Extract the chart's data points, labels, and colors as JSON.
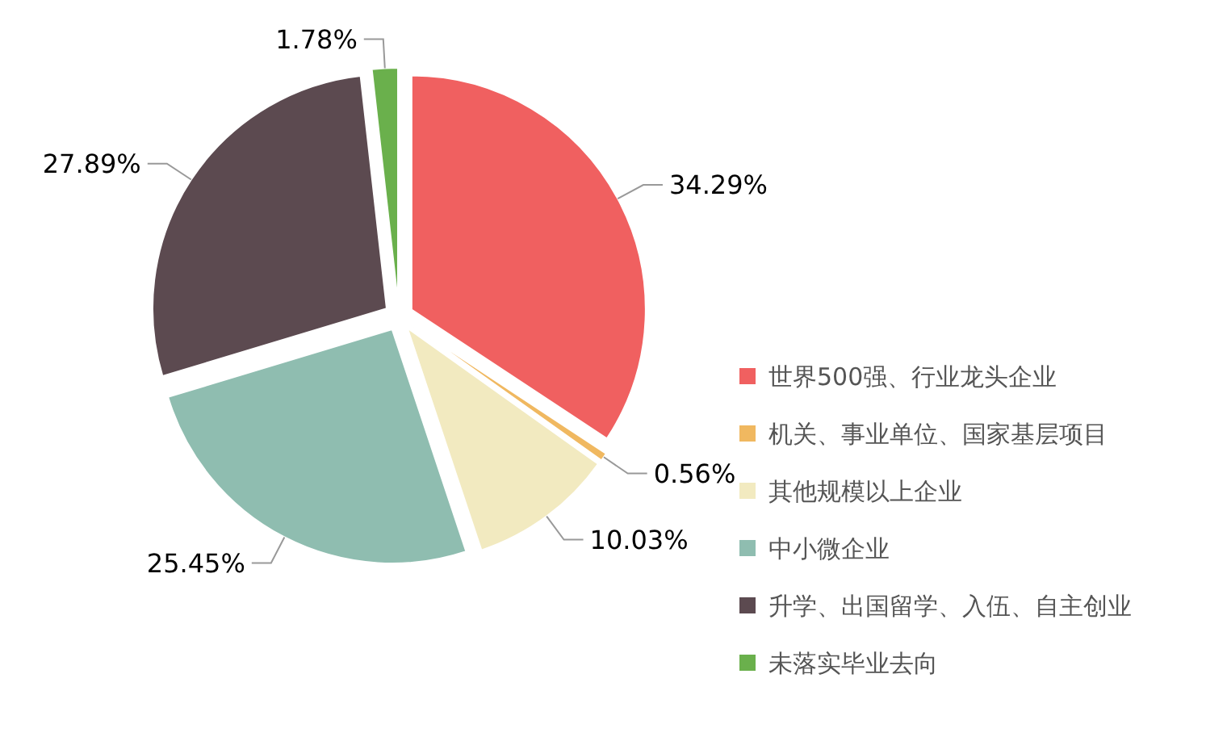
{
  "chart_data": {
    "type": "pie",
    "categories": [
      "世界500强、行业龙头企业",
      "机关、事业单位、国家基层项目",
      "其他规模以上企业",
      "中小微企业",
      "升学、出国留学、入伍、自主创业",
      "未落实毕业去向"
    ],
    "values": [
      34.29,
      0.56,
      10.03,
      25.45,
      27.89,
      1.78
    ],
    "colors": [
      "#f06060",
      "#f0b860",
      "#f2eac0",
      "#8fbdb0",
      "#5c4a50",
      "#6ab04c"
    ],
    "value_labels": [
      "34.29%",
      "0.56%",
      "10.03%",
      "25.45%",
      "27.89%",
      "1.78%"
    ],
    "legend": "right"
  }
}
